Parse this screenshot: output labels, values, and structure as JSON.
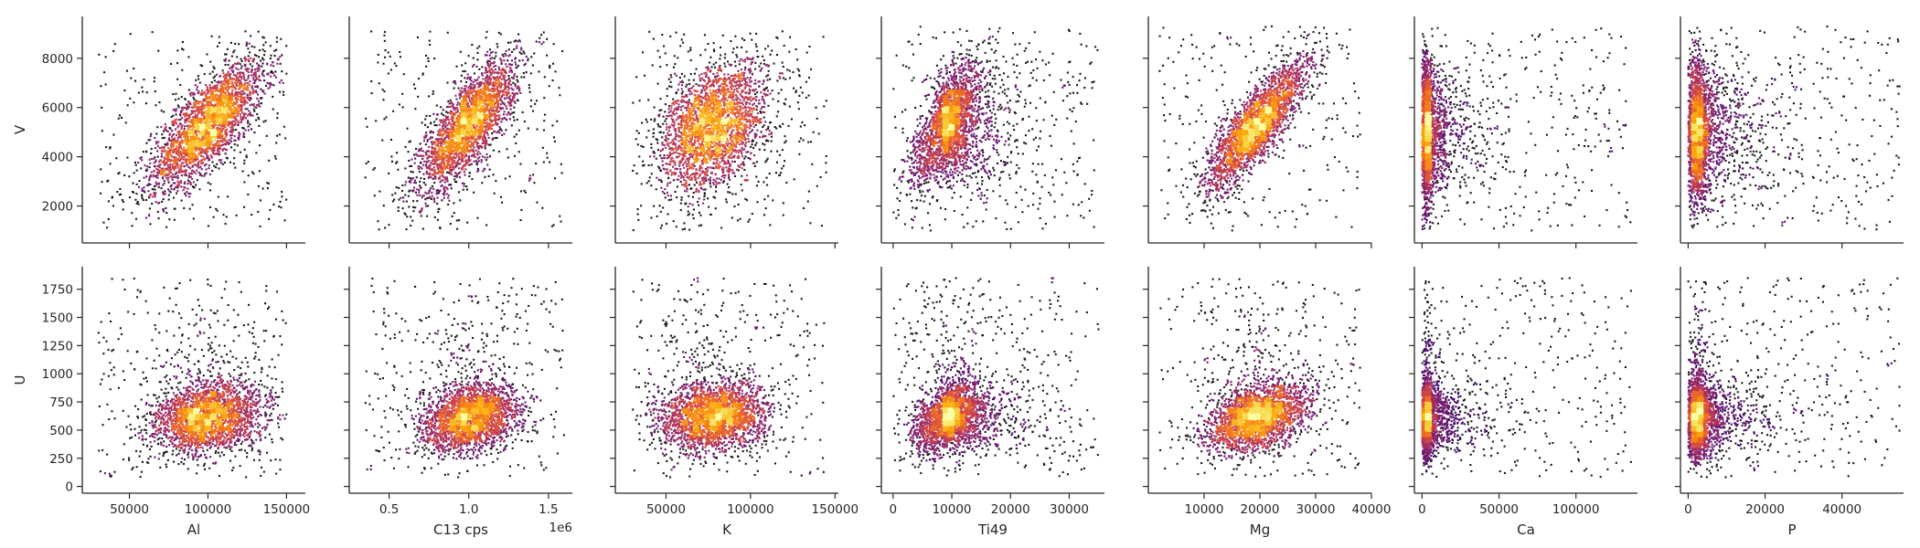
{
  "figure": {
    "colormap": [
      "#000004",
      "#160b39",
      "#420a68",
      "#6a176e",
      "#932667",
      "#bc3754",
      "#dd513a",
      "#f37819",
      "#fca50a",
      "#f6d746",
      "#fcffa4"
    ]
  },
  "chart_data": [
    {
      "type": "scatter",
      "xlabel": "",
      "ylabel": "V",
      "xlim": [
        20000,
        162000
      ],
      "ylim": [
        500,
        9700
      ],
      "xticks": [
        50000,
        100000,
        150000
      ],
      "yticks": [
        2000,
        4000,
        6000,
        8000
      ],
      "xtick_labels": [],
      "ytick_labels": [
        "2000",
        "4000",
        "6000",
        "8000"
      ],
      "cloud": {
        "center": [
          100000,
          5300
        ],
        "spread": [
          18000,
          1300
        ],
        "correlation": 0.75,
        "clip": [
          [
            30000,
            150000
          ],
          [
            1000,
            9100
          ]
        ]
      }
    },
    {
      "type": "scatter",
      "xlabel": "",
      "ylabel": "",
      "xlim": [
        0.25,
        1.65
      ],
      "ylim": [
        500,
        9700
      ],
      "xticks": [
        0.5,
        1.0,
        1.5
      ],
      "yticks": [
        2000,
        4000,
        6000,
        8000
      ],
      "xtick_labels": [],
      "ytick_labels": [],
      "cloud": {
        "center": [
          1.0,
          5300
        ],
        "spread": [
          0.15,
          1300
        ],
        "correlation": 0.75,
        "clip": [
          [
            0.35,
            1.6
          ],
          [
            1000,
            9100
          ]
        ]
      }
    },
    {
      "type": "scatter",
      "xlabel": "",
      "ylabel": "",
      "xlim": [
        20000,
        152000
      ],
      "ylim": [
        500,
        9700
      ],
      "xticks": [
        50000,
        100000,
        150000
      ],
      "yticks": [
        2000,
        4000,
        6000,
        8000
      ],
      "xtick_labels": [],
      "ytick_labels": [],
      "cloud": {
        "center": [
          78000,
          5200
        ],
        "spread": [
          16000,
          1300
        ],
        "correlation": 0.35,
        "clip": [
          [
            30000,
            145000
          ],
          [
            1000,
            9100
          ]
        ]
      }
    },
    {
      "type": "scatter",
      "xlabel": "",
      "ylabel": "",
      "xlim": [
        -2000,
        36000
      ],
      "ylim": [
        500,
        9700
      ],
      "xticks": [
        0,
        10000,
        20000,
        30000
      ],
      "yticks": [
        2000,
        4000,
        6000,
        8000
      ],
      "xtick_labels": [],
      "ytick_labels": [],
      "cloud": {
        "center": [
          8500,
          5200
        ],
        "spread": [
          2800,
          1300
        ],
        "correlation": 0.7,
        "skew_x": 3.0,
        "clip": [
          [
            0,
            35000
          ],
          [
            1000,
            9300
          ]
        ]
      }
    },
    {
      "type": "scatter",
      "xlabel": "",
      "ylabel": "",
      "xlim": [
        0,
        40000
      ],
      "ylim": [
        500,
        9700
      ],
      "xticks": [
        10000,
        20000,
        30000,
        40000
      ],
      "yticks": [
        2000,
        4000,
        6000,
        8000
      ],
      "xtick_labels": [],
      "ytick_labels": [],
      "cloud": {
        "center": [
          19500,
          5300
        ],
        "spread": [
          4500,
          1300
        ],
        "correlation": 0.85,
        "clip": [
          [
            2000,
            38000
          ],
          [
            1000,
            9300
          ]
        ]
      }
    },
    {
      "type": "scatter",
      "xlabel": "",
      "ylabel": "",
      "xlim": [
        -5000,
        140000
      ],
      "ylim": [
        500,
        9700
      ],
      "xticks": [
        0,
        50000,
        100000
      ],
      "yticks": [
        2000,
        4000,
        6000,
        8000
      ],
      "xtick_labels": [],
      "ytick_labels": [],
      "cloud": {
        "center": [
          1500,
          5000
        ],
        "spread": [
          2500,
          1400
        ],
        "correlation": 0.0,
        "skew_x": 10.0,
        "clip": [
          [
            0,
            136000
          ],
          [
            1000,
            9300
          ]
        ]
      }
    },
    {
      "type": "scatter",
      "xlabel": "",
      "ylabel": "",
      "xlim": [
        -2000,
        56000
      ],
      "ylim": [
        500,
        9700
      ],
      "xticks": [
        0,
        20000,
        40000
      ],
      "yticks": [
        2000,
        4000,
        6000,
        8000
      ],
      "xtick_labels": [],
      "ytick_labels": [],
      "cloud": {
        "center": [
          1800,
          5000
        ],
        "spread": [
          1500,
          1400
        ],
        "correlation": 0.0,
        "skew_x": 9.0,
        "clip": [
          [
            0,
            55000
          ],
          [
            1000,
            9300
          ]
        ]
      }
    },
    {
      "type": "scatter",
      "xlabel": "Al",
      "ylabel": "U",
      "xlim": [
        20000,
        162000
      ],
      "ylim": [
        -60,
        1950
      ],
      "xticks": [
        50000,
        100000,
        150000
      ],
      "yticks": [
        0,
        250,
        500,
        750,
        1000,
        1250,
        1500,
        1750
      ],
      "xtick_labels": [
        "50000",
        "100000",
        "150000"
      ],
      "ytick_labels": [
        "0",
        "250",
        "500",
        "750",
        "1000",
        "1250",
        "1500",
        "1750"
      ],
      "cloud": {
        "center": [
          100000,
          600
        ],
        "spread": [
          18000,
          150
        ],
        "correlation": 0.2,
        "tail_y": 0.12,
        "clip": [
          [
            30000,
            150000
          ],
          [
            80,
            1850
          ]
        ]
      }
    },
    {
      "type": "scatter",
      "xlabel": "C13 cps",
      "ylabel": "",
      "xlim": [
        0.25,
        1.65
      ],
      "ylim": [
        -60,
        1950
      ],
      "xticks": [
        0.5,
        1.0,
        1.5
      ],
      "yticks": [
        0,
        250,
        500,
        750,
        1000,
        1250,
        1500,
        1750
      ],
      "xtick_labels": [
        "0.5",
        "1.0",
        "1.5"
      ],
      "ytick_labels": [],
      "offset_label": "1e6",
      "cloud": {
        "center": [
          1.0,
          600
        ],
        "spread": [
          0.15,
          150
        ],
        "correlation": 0.25,
        "tail_y": 0.12,
        "clip": [
          [
            0.35,
            1.6
          ],
          [
            80,
            1850
          ]
        ]
      }
    },
    {
      "type": "scatter",
      "xlabel": "K",
      "ylabel": "",
      "xlim": [
        20000,
        152000
      ],
      "ylim": [
        -60,
        1950
      ],
      "xticks": [
        50000,
        100000,
        150000
      ],
      "yticks": [
        0,
        250,
        500,
        750,
        1000,
        1250,
        1500,
        1750
      ],
      "xtick_labels": [
        "50000",
        "100000",
        "150000"
      ],
      "ytick_labels": [],
      "cloud": {
        "center": [
          78000,
          600
        ],
        "spread": [
          16000,
          150
        ],
        "correlation": 0.1,
        "tail_y": 0.12,
        "clip": [
          [
            30000,
            145000
          ],
          [
            80,
            1850
          ]
        ]
      }
    },
    {
      "type": "scatter",
      "xlabel": "Ti49",
      "ylabel": "",
      "xlim": [
        -2000,
        36000
      ],
      "ylim": [
        -60,
        1950
      ],
      "xticks": [
        0,
        10000,
        20000,
        30000
      ],
      "yticks": [
        0,
        250,
        500,
        750,
        1000,
        1250,
        1500,
        1750
      ],
      "xtick_labels": [
        "0",
        "10000",
        "20000",
        "30000"
      ],
      "ytick_labels": [],
      "cloud": {
        "center": [
          8500,
          600
        ],
        "spread": [
          2800,
          150
        ],
        "correlation": 0.5,
        "skew_x": 3.0,
        "tail_y": 0.12,
        "clip": [
          [
            0,
            35000
          ],
          [
            80,
            1850
          ]
        ]
      }
    },
    {
      "type": "scatter",
      "xlabel": "Mg",
      "ylabel": "",
      "xlim": [
        0,
        40000
      ],
      "ylim": [
        -60,
        1950
      ],
      "xticks": [
        10000,
        20000,
        30000,
        40000
      ],
      "yticks": [
        0,
        250,
        500,
        750,
        1000,
        1250,
        1500,
        1750
      ],
      "xtick_labels": [
        "10000",
        "20000",
        "30000",
        "40000"
      ],
      "ytick_labels": [],
      "cloud": {
        "center": [
          19500,
          600
        ],
        "spread": [
          4500,
          150
        ],
        "correlation": 0.4,
        "tail_y": 0.12,
        "clip": [
          [
            2000,
            38000
          ],
          [
            80,
            1850
          ]
        ]
      }
    },
    {
      "type": "scatter",
      "xlabel": "Ca",
      "ylabel": "",
      "xlim": [
        -5000,
        140000
      ],
      "ylim": [
        -60,
        1950
      ],
      "xticks": [
        0,
        50000,
        100000
      ],
      "yticks": [
        0,
        250,
        500,
        750,
        1000,
        1250,
        1500,
        1750
      ],
      "xtick_labels": [
        "0",
        "50000",
        "100000"
      ],
      "ytick_labels": [],
      "cloud": {
        "center": [
          1500,
          600
        ],
        "spread": [
          2500,
          160
        ],
        "correlation": 0.0,
        "skew_x": 10.0,
        "tail_y": 0.12,
        "clip": [
          [
            0,
            136000
          ],
          [
            80,
            1850
          ]
        ]
      }
    },
    {
      "type": "scatter",
      "xlabel": "P",
      "ylabel": "",
      "xlim": [
        -2000,
        56000
      ],
      "ylim": [
        -60,
        1950
      ],
      "xticks": [
        0,
        20000,
        40000
      ],
      "yticks": [
        0,
        250,
        500,
        750,
        1000,
        1250,
        1500,
        1750
      ],
      "xtick_labels": [
        "0",
        "20000",
        "40000"
      ],
      "ytick_labels": [],
      "cloud": {
        "center": [
          1800,
          600
        ],
        "spread": [
          1500,
          160
        ],
        "correlation": 0.0,
        "skew_x": 9.0,
        "tail_y": 0.12,
        "clip": [
          [
            0,
            55000
          ],
          [
            80,
            1850
          ]
        ]
      }
    }
  ]
}
